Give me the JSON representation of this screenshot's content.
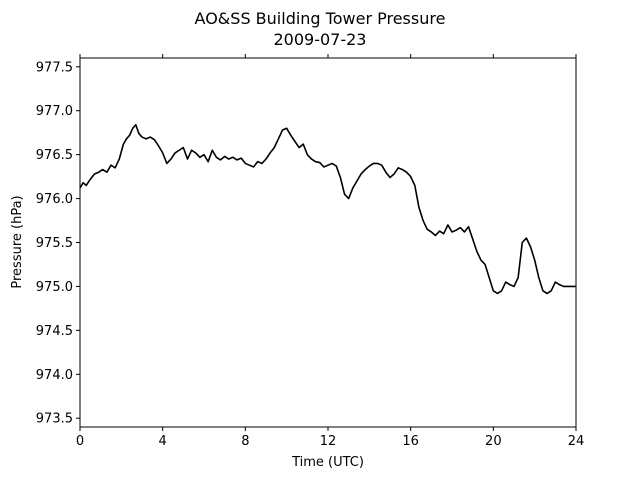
{
  "chart_data": {
    "type": "line",
    "title": "AO&SS Building Tower Pressure",
    "subtitle": "2009-07-23",
    "xlabel": "Time (UTC)",
    "ylabel": "Pressure (hPa)",
    "xlim": [
      0,
      24
    ],
    "ylim": [
      973.4,
      977.6
    ],
    "xticks": [
      0,
      4,
      8,
      12,
      16,
      20,
      24
    ],
    "xtick_labels": [
      "0",
      "4",
      "8",
      "12",
      "16",
      "20",
      "24"
    ],
    "yticks": [
      973.5,
      974.0,
      974.5,
      975.0,
      975.5,
      976.0,
      976.5,
      977.0,
      977.5
    ],
    "ytick_labels": [
      "973.5",
      "974.0",
      "974.5",
      "975.0",
      "975.5",
      "976.0",
      "976.5",
      "977.0",
      "977.5"
    ],
    "grid": false,
    "series": [
      {
        "color": "#000000",
        "x": [
          0.0,
          0.15,
          0.3,
          0.5,
          0.7,
          0.9,
          1.1,
          1.3,
          1.5,
          1.7,
          1.9,
          2.1,
          2.25,
          2.4,
          2.55,
          2.7,
          2.85,
          3.0,
          3.2,
          3.4,
          3.6,
          3.8,
          4.0,
          4.2,
          4.4,
          4.6,
          4.8,
          5.0,
          5.2,
          5.4,
          5.6,
          5.8,
          6.0,
          6.2,
          6.4,
          6.6,
          6.8,
          7.0,
          7.2,
          7.4,
          7.6,
          7.8,
          8.0,
          8.2,
          8.4,
          8.6,
          8.8,
          9.0,
          9.2,
          9.4,
          9.6,
          9.8,
          10.0,
          10.2,
          10.4,
          10.6,
          10.8,
          11.0,
          11.2,
          11.4,
          11.6,
          11.8,
          12.0,
          12.2,
          12.4,
          12.6,
          12.8,
          13.0,
          13.2,
          13.4,
          13.6,
          13.8,
          14.0,
          14.2,
          14.4,
          14.6,
          14.8,
          15.0,
          15.2,
          15.4,
          15.6,
          15.8,
          16.0,
          16.2,
          16.4,
          16.6,
          16.8,
          17.0,
          17.2,
          17.4,
          17.6,
          17.8,
          18.0,
          18.2,
          18.4,
          18.6,
          18.8,
          19.0,
          19.2,
          19.4,
          19.6,
          19.8,
          20.0,
          20.2,
          20.4,
          20.6,
          20.8,
          21.0,
          21.2,
          21.4,
          21.6,
          21.8,
          22.0,
          22.2,
          22.4,
          22.6,
          22.8,
          23.0,
          23.2,
          23.4,
          23.6,
          23.8,
          24.0
        ],
        "values": [
          976.12,
          976.18,
          976.15,
          976.22,
          976.28,
          976.3,
          976.33,
          976.3,
          976.38,
          976.35,
          976.45,
          976.62,
          976.68,
          976.72,
          976.8,
          976.84,
          976.74,
          976.7,
          976.68,
          976.7,
          976.67,
          976.6,
          976.52,
          976.4,
          976.45,
          976.52,
          976.55,
          976.58,
          976.45,
          976.55,
          976.52,
          976.47,
          976.5,
          976.42,
          976.55,
          976.47,
          976.44,
          976.48,
          976.45,
          976.47,
          976.44,
          976.46,
          976.4,
          976.38,
          976.36,
          976.42,
          976.4,
          976.45,
          976.52,
          976.58,
          976.68,
          976.78,
          976.8,
          976.72,
          976.65,
          976.58,
          976.62,
          976.5,
          976.45,
          976.42,
          976.41,
          976.36,
          976.38,
          976.4,
          976.37,
          976.24,
          976.05,
          976.0,
          976.12,
          976.2,
          976.28,
          976.33,
          976.37,
          976.4,
          976.4,
          976.38,
          976.3,
          976.24,
          976.28,
          976.35,
          976.33,
          976.3,
          976.25,
          976.15,
          975.9,
          975.75,
          975.65,
          975.62,
          975.58,
          975.63,
          975.6,
          975.7,
          975.62,
          975.64,
          975.67,
          975.62,
          975.68,
          975.54,
          975.4,
          975.3,
          975.25,
          975.1,
          974.95,
          974.92,
          974.95,
          975.05,
          975.02,
          975.0,
          975.1,
          975.5,
          975.55,
          975.45,
          975.3,
          975.1,
          974.95,
          974.92,
          974.95,
          975.05,
          975.02,
          975.0,
          975.0,
          975.0,
          975.0
        ]
      }
    ]
  }
}
